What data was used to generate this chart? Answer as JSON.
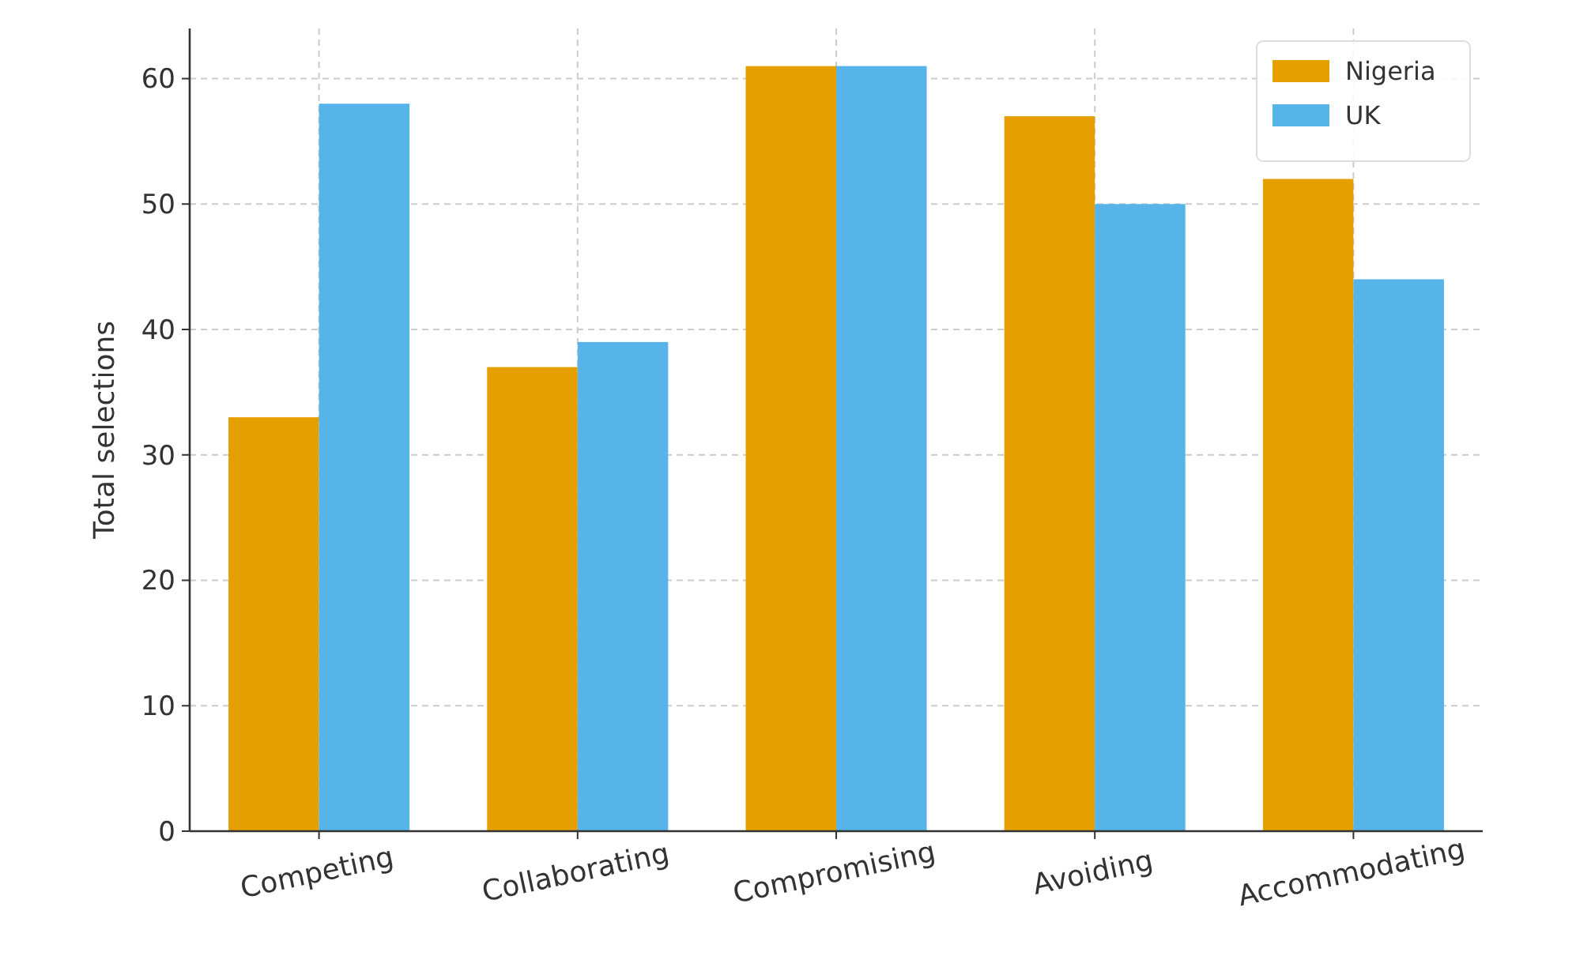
{
  "chart_data": {
    "type": "bar",
    "ylabel": "Total selections",
    "categories": [
      "Competing",
      "Collaborating",
      "Compromising",
      "Avoiding",
      "Accommodating"
    ],
    "series": [
      {
        "name": "Nigeria",
        "color": "#e69f00",
        "values": [
          33,
          37,
          61,
          57,
          52
        ]
      },
      {
        "name": "UK",
        "color": "#56b4e9",
        "values": [
          58,
          39,
          61,
          50,
          44
        ]
      }
    ],
    "ylim": [
      0,
      64
    ],
    "yticks": [
      0,
      10,
      20,
      30,
      40,
      50,
      60
    ],
    "grid": true,
    "legend": "top right"
  }
}
